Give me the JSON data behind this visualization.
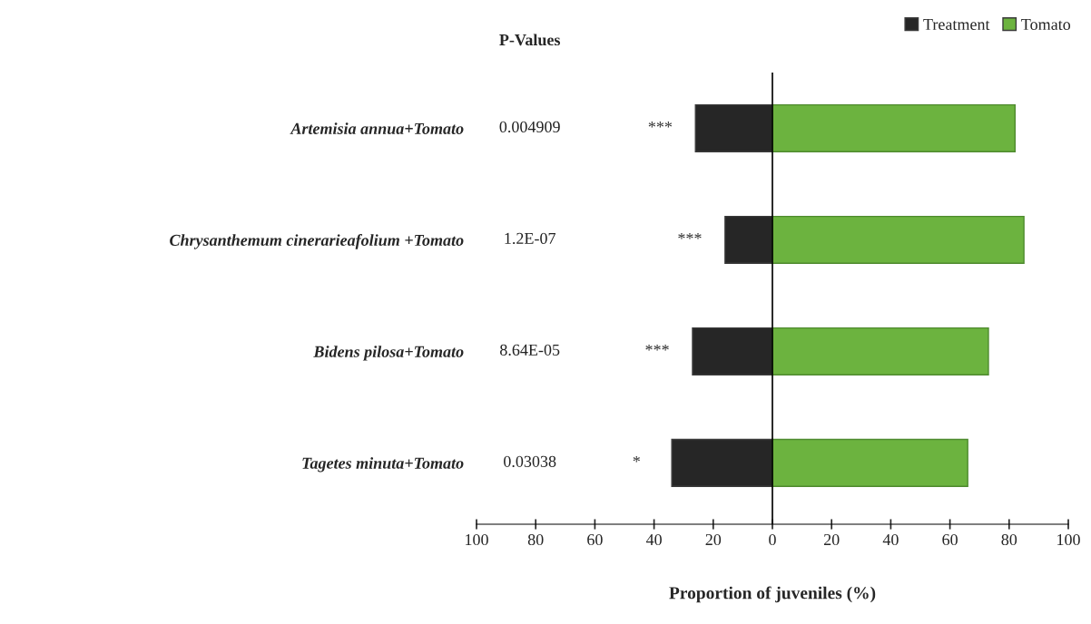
{
  "chart_data": {
    "type": "bar",
    "orientation": "horizontal",
    "stacked": true,
    "categories": [
      "Artemisia annua+Tomato",
      "Chrysanthemum cinerarieafolium +Tomato",
      "Bidens pilosa+Tomato",
      "Tagetes minuta+Tomato"
    ],
    "series": [
      {
        "name": "Treatment",
        "color": "#262626",
        "values": [
          -26,
          -16,
          -27,
          -34
        ]
      },
      {
        "name": "Tomato",
        "color": "#6cb33f",
        "values": [
          82,
          85,
          73,
          66
        ]
      }
    ],
    "xlabel": "Proportion of juveniles (%)",
    "xlim": [
      -100,
      100
    ],
    "xticks": [
      {
        "value": -100,
        "label": "100"
      },
      {
        "value": -80,
        "label": "80"
      },
      {
        "value": -60,
        "label": "60"
      },
      {
        "value": -40,
        "label": "40"
      },
      {
        "value": -20,
        "label": "20"
      },
      0,
      20,
      40,
      60,
      80,
      100
    ],
    "legend": "top right",
    "grid": false,
    "ref_lines": [
      {
        "axis": "x",
        "value": 0
      }
    ],
    "annotations": [
      "P-Values",
      "0.004909",
      "1.2E-07",
      "8.64E-05",
      "0.03038",
      "***",
      "***",
      "***",
      "*"
    ]
  }
}
